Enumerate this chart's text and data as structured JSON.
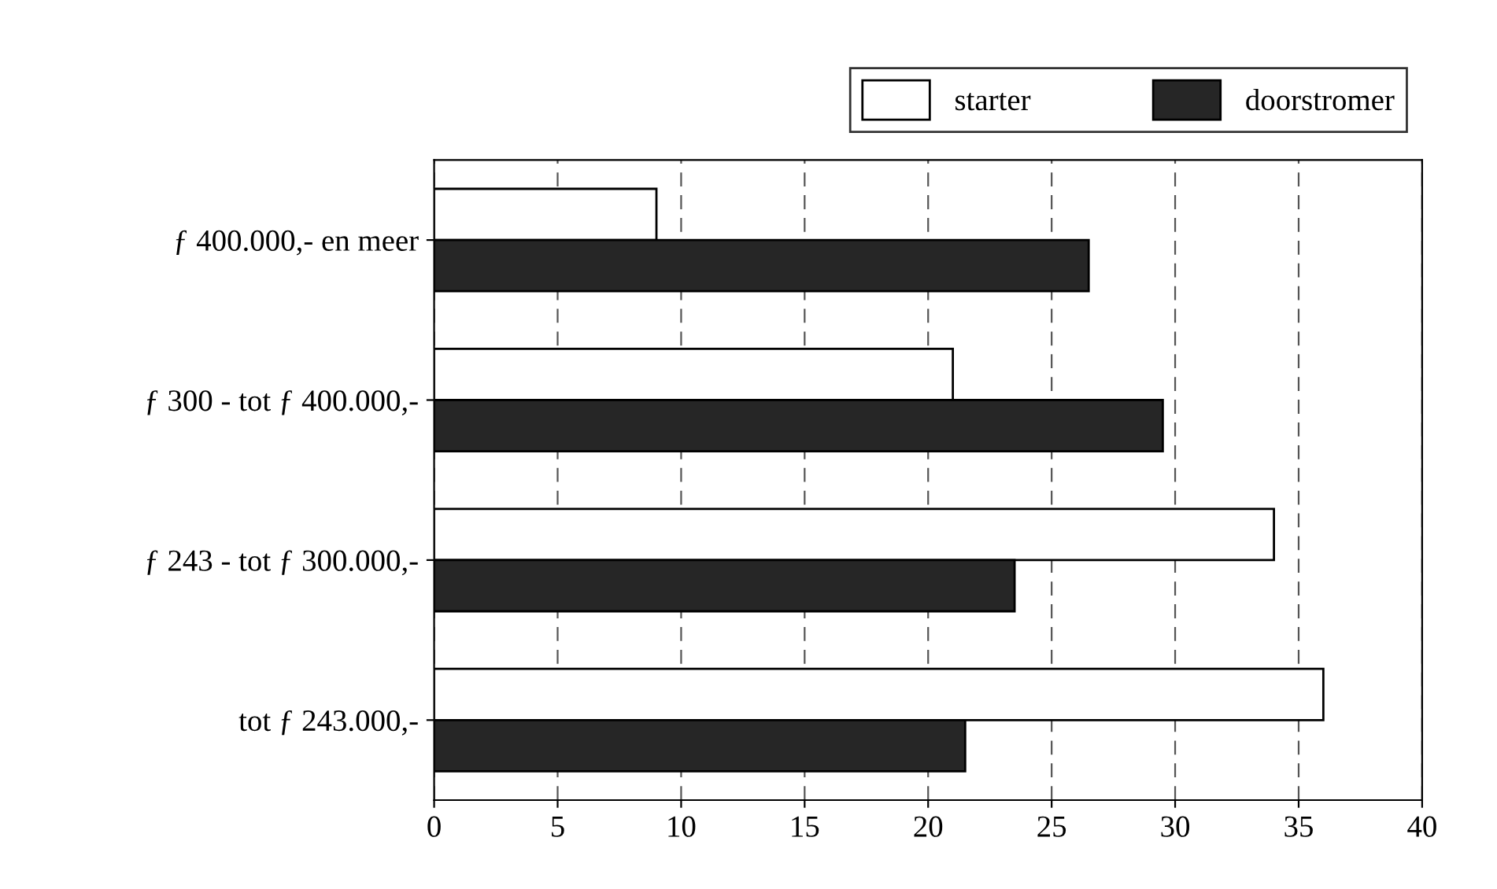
{
  "chart_data": {
    "type": "bar",
    "orientation": "horizontal",
    "categories": [
      "ƒ 400.000,- en meer",
      "ƒ 300 - tot ƒ 400.000,-",
      "ƒ 243 - tot ƒ 300.000,-",
      "tot ƒ 243.000,-"
    ],
    "series": [
      {
        "name": "starter",
        "color": "#ffffff",
        "values": [
          9,
          21,
          34,
          36
        ]
      },
      {
        "name": "doorstromer",
        "color": "#262626",
        "values": [
          26.5,
          29.5,
          23.5,
          21.5
        ]
      }
    ],
    "xlim": [
      0,
      40
    ],
    "xticks": [
      0,
      5,
      10,
      15,
      20,
      25,
      30,
      35,
      40
    ],
    "grid": "x",
    "legend": "top right"
  }
}
